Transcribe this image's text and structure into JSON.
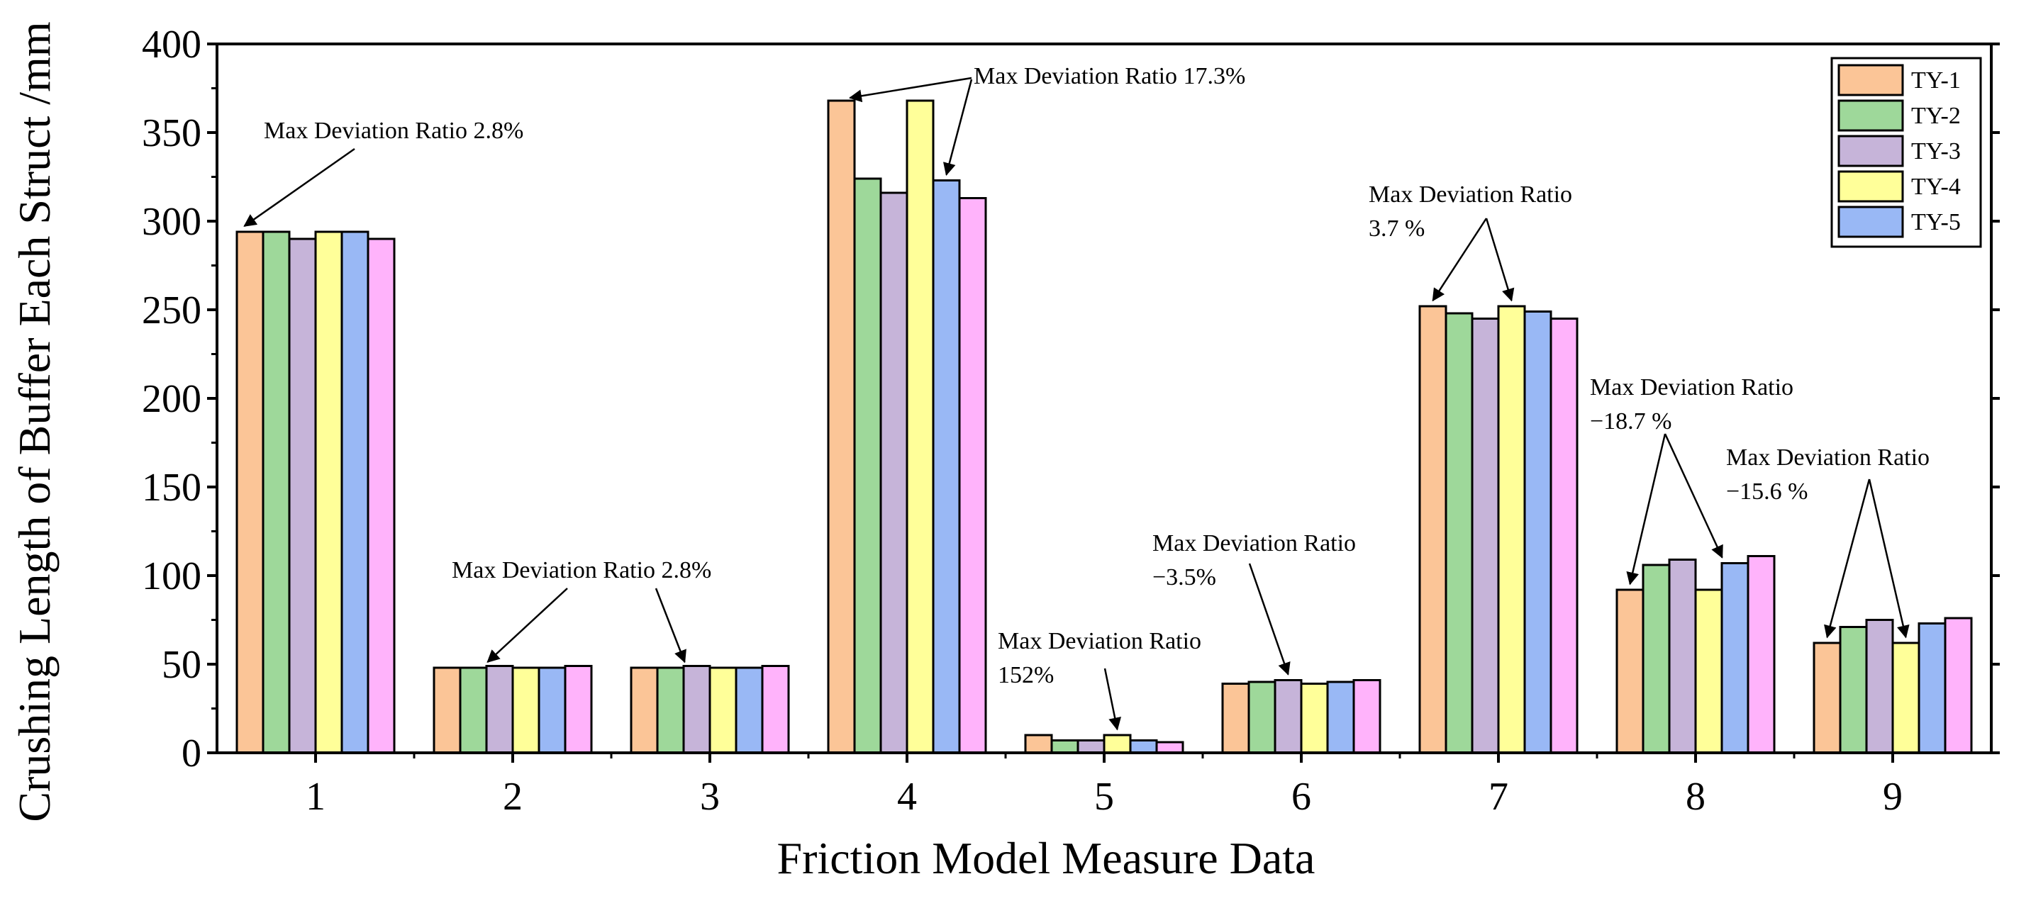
{
  "chart_data": {
    "type": "bar",
    "categories": [
      "1",
      "2",
      "3",
      "4",
      "5",
      "6",
      "7",
      "8",
      "9"
    ],
    "xlabel": "Friction Model Measure Data",
    "ylabel": "Crushing Length of Buffer Each Struct /mm",
    "ylim": [
      0,
      400
    ],
    "yticks": [
      "0",
      "50",
      "100",
      "150",
      "200",
      "250",
      "300",
      "350",
      "400"
    ],
    "legend_position": "top-right",
    "series": [
      {
        "name": "TY-1",
        "color": "#FBC597",
        "values": [
          294,
          48,
          48,
          368,
          10,
          39,
          252,
          92,
          62
        ]
      },
      {
        "name": "TY-2",
        "color": "#9ED89A",
        "values": [
          294,
          48,
          48,
          324,
          7,
          40,
          248,
          106,
          71
        ]
      },
      {
        "name": "TY-3",
        "color": "#C6B4D9",
        "values": [
          290,
          49,
          49,
          316,
          7,
          41,
          245,
          109,
          75
        ]
      },
      {
        "name": "TY-4",
        "color": "#FFFF99",
        "values": [
          294,
          48,
          48,
          368,
          10,
          39,
          252,
          92,
          62
        ]
      },
      {
        "name": "TY-5",
        "color": "#99B8F5",
        "values": [
          294,
          48,
          48,
          323,
          7,
          40,
          249,
          107,
          73
        ]
      },
      {
        "color": "#FFB3FB",
        "values": [
          290,
          49,
          49,
          313,
          6,
          41,
          245,
          111,
          76
        ]
      }
    ],
    "annotations": [
      {
        "lines": [
          "Max Deviation Ratio 2.8%"
        ],
        "category": 0
      },
      {
        "lines": [
          "Max Deviation Ratio 2.8%"
        ],
        "category": 1
      },
      {
        "lines": [
          "Max Deviation Ratio 17.3%"
        ],
        "category": 3
      },
      {
        "lines": [
          "Max Deviation Ratio",
          "152%"
        ],
        "category": 4
      },
      {
        "lines": [
          "Max Deviation Ratio",
          "−3.5%"
        ],
        "category": 5
      },
      {
        "lines": [
          "Max Deviation Ratio",
          "3.7 %"
        ],
        "category": 6
      },
      {
        "lines": [
          "Max Deviation Ratio",
          "−18.7 %"
        ],
        "category": 7
      },
      {
        "lines": [
          "Max Deviation Ratio",
          "−15.6 %"
        ],
        "category": 8
      }
    ]
  }
}
